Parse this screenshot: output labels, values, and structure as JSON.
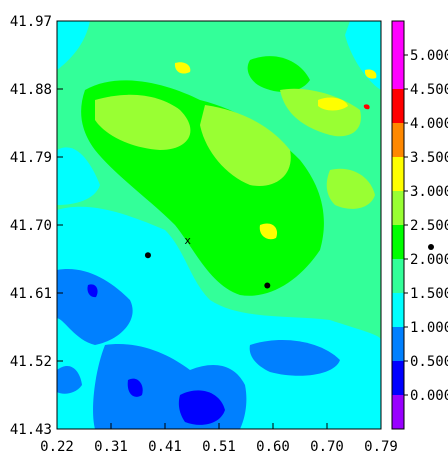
{
  "chart_data": {
    "type": "heatmap",
    "title": "",
    "xlabel": "",
    "ylabel": "",
    "xlim": [
      0.22,
      0.79
    ],
    "ylim": [
      41.43,
      41.97
    ],
    "x_ticks": [
      "0.22",
      "0.31",
      "0.41",
      "0.51",
      "0.60",
      "0.70",
      "0.79"
    ],
    "y_ticks": [
      "41.43",
      "41.52",
      "41.61",
      "41.70",
      "41.79",
      "41.88",
      "41.97"
    ],
    "colorbar": {
      "levels": [
        "0.000",
        "0.500",
        "1.000",
        "1.500",
        "2.000",
        "2.500",
        "3.000",
        "3.500",
        "4.000",
        "4.500",
        "5.000"
      ],
      "colors": [
        "#9900ff",
        "#0000ff",
        "#0080ff",
        "#00ffff",
        "#33ff99",
        "#00ff00",
        "#99ff33",
        "#ffff00",
        "#ff8800",
        "#ff0000",
        "#ff00ff",
        "#ff00ff"
      ]
    },
    "markers": [
      {
        "x": 0.38,
        "y": 41.66,
        "symbol": "dot"
      },
      {
        "x": 0.59,
        "y": 41.62,
        "symbol": "dot"
      },
      {
        "x": 0.45,
        "y": 41.68,
        "symbol": "x",
        "label": "x"
      }
    ],
    "offscale_marker": {
      "symbol": "dot"
    },
    "field_description": "Concentration field: cyan/blue values in south-west, green/yellow-green in north with yellow patches"
  }
}
